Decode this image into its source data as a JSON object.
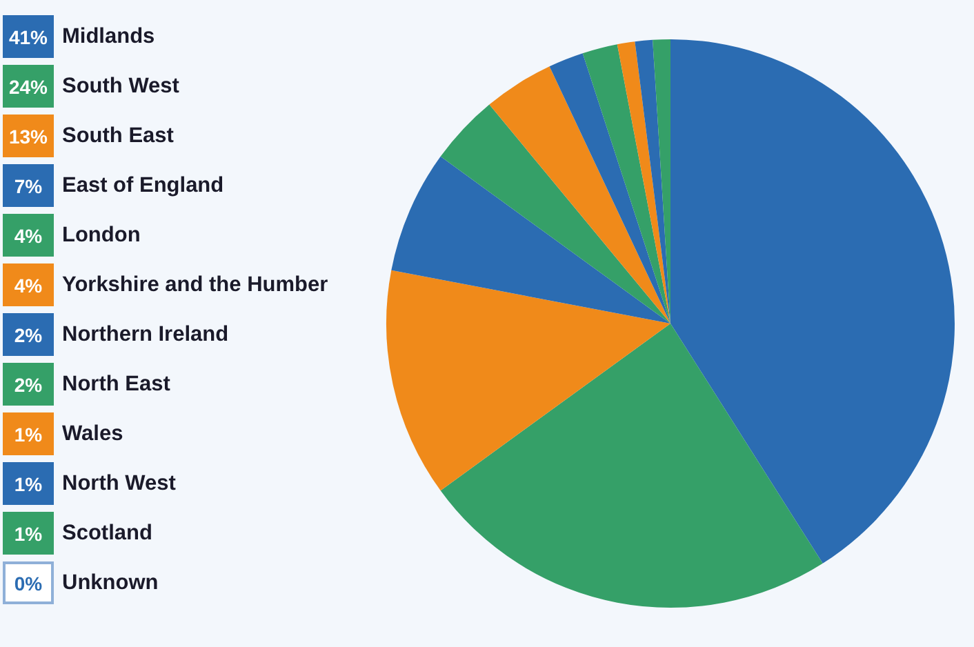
{
  "chart_data": {
    "type": "pie",
    "categories": [
      "Midlands",
      "South West",
      "South East",
      "East of England",
      "London",
      "Yorkshire and the Humber",
      "Northern Ireland",
      "North East",
      "Wales",
      "North West",
      "Scotland",
      "Unknown"
    ],
    "values": [
      41,
      24,
      13,
      7,
      4,
      4,
      2,
      2,
      1,
      1,
      1,
      0
    ],
    "colors": [
      "#2b6cb2",
      "#35a068",
      "#f08a1a",
      "#2b6cb2",
      "#35a068",
      "#f08a1a",
      "#2b6cb2",
      "#35a068",
      "#f08a1a",
      "#2b6cb2",
      "#35a068",
      "#ffffff"
    ],
    "value_labels": [
      "41%",
      "24%",
      "13%",
      "7%",
      "4%",
      "4%",
      "2%",
      "2%",
      "1%",
      "1%",
      "1%",
      "0%"
    ],
    "legend": "left"
  }
}
